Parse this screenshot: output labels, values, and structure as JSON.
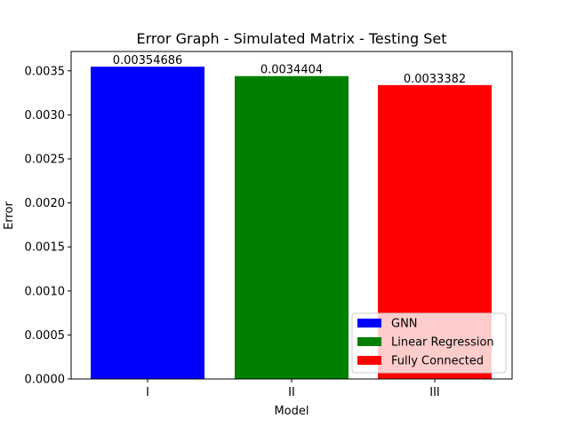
{
  "chart_data": {
    "type": "bar",
    "title": "Error Graph - Simulated Matrix - Testing Set",
    "xlabel": "Model",
    "ylabel": "Error",
    "categories": [
      "I",
      "II",
      "III"
    ],
    "values": [
      0.00354686,
      0.0034404,
      0.0033382
    ],
    "data_labels": [
      "0.00354686",
      "0.0034404",
      "0.0033382"
    ],
    "colors": [
      "#0000ff",
      "#008000",
      "#ff0000"
    ],
    "series": [
      {
        "name": "GNN",
        "color": "#0000ff"
      },
      {
        "name": "Linear Regression",
        "color": "#008000"
      },
      {
        "name": "Fully Connected",
        "color": "#ff0000"
      }
    ],
    "ylim": [
      0,
      0.00372
    ],
    "yticks": [
      0.0,
      0.0005,
      0.001,
      0.0015,
      0.002,
      0.0025,
      0.003,
      0.0035
    ],
    "ytick_labels": [
      "0.0000",
      "0.0005",
      "0.0010",
      "0.0015",
      "0.0020",
      "0.0025",
      "0.0030",
      "0.0035"
    ],
    "grid": false,
    "legend_position": "lower-right"
  }
}
